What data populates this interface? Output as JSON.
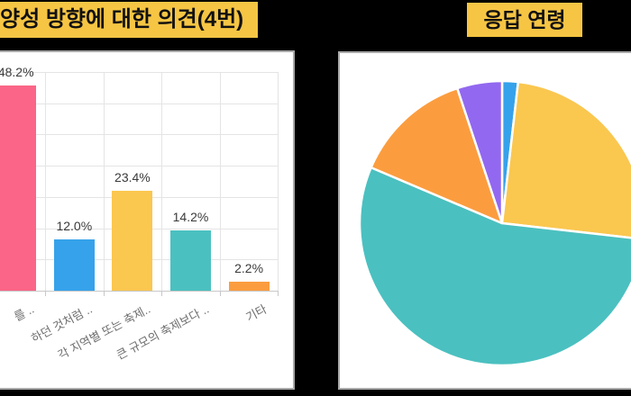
{
  "background": "#000000",
  "panel_bg": "#FFFFFF",
  "panel_border_color": "#A9A9A9",
  "title_bar_bg": "#F6C544",
  "title_bar_text_color": "#111111",
  "chart_data": [
    {
      "type": "bar",
      "title": "양성 방향에 대한 의견(4번)",
      "categories": [
        "를 ..",
        "하던 것처럼 ..",
        "각 지역별 또는 축제..",
        "큰 규모의 축제보다 ..",
        "기타"
      ],
      "values": [
        48.2,
        12.0,
        23.4,
        14.2,
        2.2
      ],
      "value_labels": [
        "48.2%",
        "12.0%",
        "23.4%",
        "14.2%",
        "2.2%"
      ],
      "bar_colors": [
        "#FB6587",
        "#36A2EB",
        "#FAC74F",
        "#4BC0C0",
        "#FB9D3F"
      ],
      "ylim": [
        0,
        51.3
      ],
      "grid": true,
      "gridline_color": "#E4E4E4",
      "axis_color": "#C8C8C8",
      "value_label_color": "#3A3A3A",
      "tick_label_color": "#6E6E6E",
      "tick_label_rotation_deg": -28,
      "legend": "none"
    },
    {
      "type": "pie",
      "title": "응답 연령",
      "slices": [
        {
          "color_name": "blue",
          "value_pct": 1.8,
          "color": "#36A2EB"
        },
        {
          "color_name": "yellow",
          "value_pct": 25.0,
          "color": "#FAC74F"
        },
        {
          "color_name": "teal",
          "value_pct": 54.6,
          "color": "#4BC0C0"
        },
        {
          "color_name": "orange",
          "value_pct": 13.5,
          "color": "#FB9D3F"
        },
        {
          "color_name": "purple",
          "value_pct": 5.1,
          "color": "#9268F0"
        }
      ],
      "start": "12-oclock",
      "direction": "clockwise",
      "slice_border_color": "#FFFFFF",
      "labels_shown": false,
      "legend": "none"
    }
  ]
}
